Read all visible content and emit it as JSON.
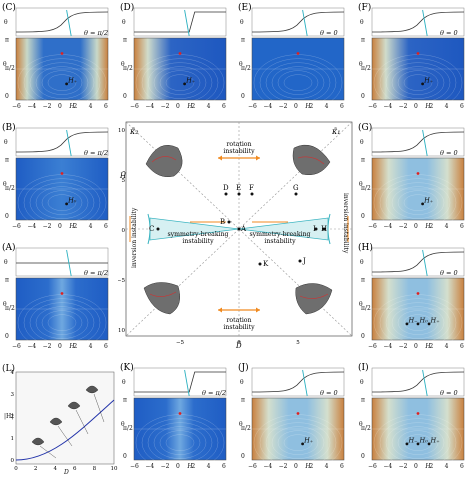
{
  "panels": {
    "C": {
      "label": "(C)",
      "condition": "θ = π/2",
      "points": [
        "H₊"
      ],
      "xticks": [
        "−6",
        "−4",
        "−2",
        "0",
        "2",
        "4",
        "6"
      ],
      "xlabel": "H",
      "ylabel": "θ",
      "yticks": [
        "0",
        "π/2",
        "π"
      ]
    },
    "D": {
      "label": "(D)",
      "condition": "",
      "points": [
        "H₊"
      ],
      "xticks": [
        "−6",
        "−4",
        "−2",
        "0",
        "2",
        "4",
        "6"
      ],
      "xlabel": "H",
      "ylabel": "θ",
      "yticks": [
        "0",
        "π/2",
        "π"
      ]
    },
    "E": {
      "label": "(E)",
      "condition": "θ = 0",
      "points": [],
      "xticks": [
        "−6",
        "−4",
        "−2",
        "0",
        "2",
        "4",
        "6"
      ],
      "xlabel": "H",
      "ylabel": "θ",
      "yticks": [
        "0",
        "π/2",
        "π"
      ]
    },
    "F": {
      "label": "(F)",
      "condition": "θ = 0",
      "points": [
        "H₊"
      ],
      "xticks": [
        "−6",
        "−4",
        "−2",
        "0",
        "2",
        "4",
        "6"
      ],
      "xlabel": "H",
      "ylabel": "θ",
      "yticks": [
        "0",
        "π/2",
        "π"
      ]
    },
    "B": {
      "label": "(B)",
      "condition": "θ = π/2",
      "points": [
        "H₀"
      ],
      "xticks": [
        "−6",
        "−4",
        "−2",
        "0",
        "2",
        "4",
        "6"
      ],
      "xlabel": "H",
      "ylabel": "θ",
      "yticks": [
        "0",
        "π/2",
        "π"
      ]
    },
    "G": {
      "label": "(G)",
      "condition": "θ = 0",
      "points": [
        "H₊"
      ],
      "xticks": [
        "−6",
        "−4",
        "−2",
        "0",
        "2",
        "4",
        "6"
      ],
      "xlabel": "H",
      "ylabel": "θ",
      "yticks": [
        "0",
        "π/2",
        "π"
      ]
    },
    "A": {
      "label": "(A)",
      "condition": "θ = π/2",
      "points": [],
      "xticks": [
        "−6",
        "−4",
        "−2",
        "0",
        "2",
        "4",
        "6"
      ],
      "xlabel": "H",
      "ylabel": "θ",
      "yticks": [
        "0",
        "π/2",
        "π"
      ]
    },
    "H": {
      "label": "(H)",
      "condition": "θ = 0",
      "points": [
        "H₋",
        "H₀",
        "H₊"
      ],
      "xticks": [
        "−6",
        "−4",
        "−2",
        "0",
        "2",
        "4",
        "6"
      ],
      "xlabel": "H",
      "ylabel": "θ",
      "yticks": [
        "0",
        "π/2",
        "π"
      ]
    },
    "K": {
      "label": "(K)",
      "condition": "θ = π/2",
      "points": [],
      "xticks": [
        "−6",
        "−4",
        "−2",
        "0",
        "2",
        "4",
        "6"
      ],
      "xlabel": "H",
      "ylabel": "θ",
      "yticks": [
        "0",
        "π/2",
        "π"
      ]
    },
    "J": {
      "label": "(J)",
      "condition": "θ = 0",
      "points": [
        "H₊"
      ],
      "xticks": [
        "−6",
        "−4",
        "−2",
        "0",
        "2",
        "4",
        "6"
      ],
      "xlabel": "H",
      "ylabel": "θ",
      "yticks": [
        "0",
        "π/2",
        "π"
      ]
    },
    "I": {
      "label": "(I)",
      "condition": "θ = 0",
      "points": [
        "H₋",
        "H₀",
        "H₊"
      ],
      "xticks": [
        "−6",
        "−4",
        "−2",
        "0",
        "2",
        "4",
        "6"
      ],
      "xlabel": "H",
      "ylabel": "θ",
      "yticks": [
        "0",
        "π/2",
        "π"
      ]
    }
  },
  "center": {
    "k2": "κ̃₂",
    "k1": "κ̃₁",
    "xlabel": "D̃",
    "ylabel": "H̃",
    "yticks": [
      "10",
      "5",
      "0",
      "−5",
      "−10"
    ],
    "xticks": [
      "−5",
      "0",
      "5"
    ],
    "rot_top": "rotation\ninstability",
    "rot_bottom": "rotation\ninstability",
    "sym_left": "symmetry-breaking\ninstability",
    "sym_right": "symmetry-breaking\ninstability",
    "inv_left": "inversion instability",
    "inv_right": "inversion instability",
    "points": [
      "A",
      "B",
      "C",
      "D",
      "E",
      "F",
      "G",
      "H",
      "I",
      "J",
      "K"
    ]
  },
  "panelL": {
    "label": "(L)",
    "ylabel": "|H|",
    "xlabel": "D",
    "xticks": [
      "0",
      "2",
      "4",
      "6",
      "8",
      "10"
    ],
    "yticks": [
      "0",
      "1",
      "2",
      "3",
      "4"
    ]
  }
}
